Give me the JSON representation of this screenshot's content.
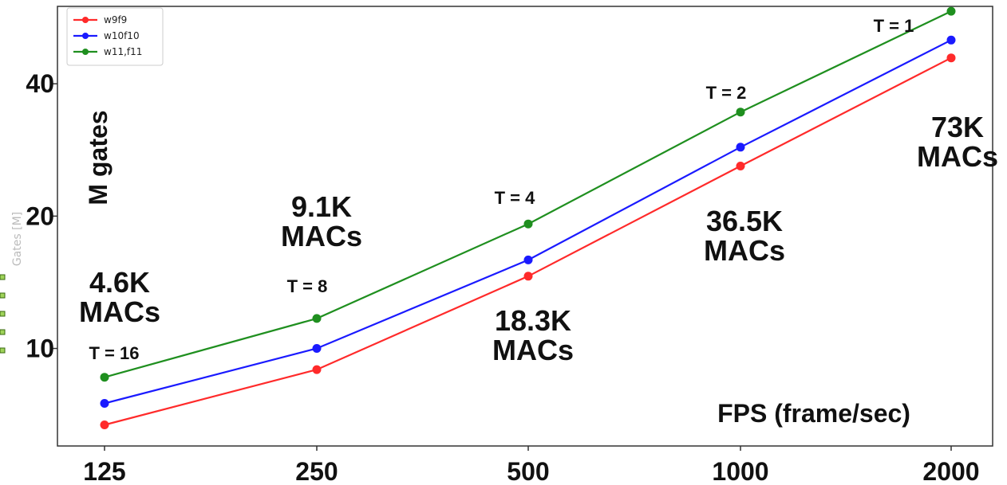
{
  "chart_data": {
    "type": "line",
    "x": [
      125,
      250,
      500,
      1000,
      2000
    ],
    "x_tick_labels": [
      "125",
      "250",
      "500",
      "1000",
      "2000"
    ],
    "y_tick_labels": [
      "10",
      "20",
      "40"
    ],
    "y_ticks": [
      10,
      20,
      40
    ],
    "ylim": [
      6,
      60
    ],
    "y_scale": "log",
    "x_scale": "log",
    "xlabel": "FPS (frame/sec)",
    "ylabel": "M gates",
    "ylabel_faint": "Gates [M]",
    "legend_position": "top-left",
    "series": [
      {
        "name": "w9f9",
        "color": "#ff2a2a",
        "values": [
          6.7,
          8.95,
          14.6,
          26.0,
          45.8
        ]
      },
      {
        "name": "w10f10",
        "color": "#1a1aff",
        "values": [
          7.5,
          10.0,
          15.9,
          28.7,
          50.3
        ]
      },
      {
        "name": "w11,f11",
        "color": "#1f8f1f",
        "values": [
          8.6,
          11.7,
          19.2,
          34.5,
          58.5
        ]
      }
    ],
    "annotations": {
      "t_labels": [
        "T = 16",
        "T = 8",
        "T = 4",
        "T = 2",
        "T = 1"
      ],
      "mac_lines": [
        [
          "4.6K",
          "MACs"
        ],
        [
          "9.1K",
          "MACs"
        ],
        [
          "18.3K",
          "MACs"
        ],
        [
          "36.5K",
          "MACs"
        ],
        [
          "73K",
          "MACs"
        ]
      ]
    }
  }
}
